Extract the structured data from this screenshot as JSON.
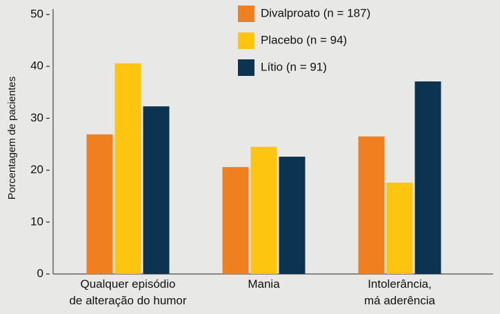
{
  "chart_data": {
    "type": "bar",
    "y_label": "Porcentagem de pacientes",
    "categories": [
      "Qualquer episódio\nde alteração do humor",
      "Mania",
      "Intolerância,\nmá aderência"
    ],
    "series": [
      {
        "name": "Divalproato (n = 187)",
        "color": "#ef7f1f",
        "values": [
          26.9,
          20.6,
          26.5
        ]
      },
      {
        "name": "Placebo (n = 94)",
        "color": "#fdc410",
        "values": [
          40.6,
          24.5,
          17.6
        ]
      },
      {
        "name": "Lítio (n = 91)",
        "color": "#0c3350",
        "values": [
          32.3,
          22.6,
          37.1
        ]
      }
    ],
    "ylim": [
      0,
      50
    ],
    "yticks": [
      0,
      10,
      20,
      30,
      40,
      50
    ],
    "grid": false,
    "legend": "top"
  }
}
